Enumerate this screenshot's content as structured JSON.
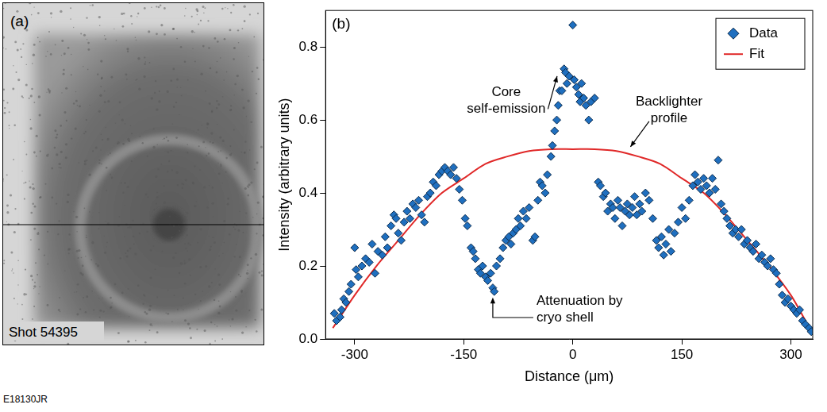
{
  "figure_id": "E18130JR",
  "image_panel": {
    "label": "(a)",
    "caption": "Shot 54395"
  },
  "chart_data": {
    "type": "scatter",
    "panel_label": "(b)",
    "x_label": "Distance (μm)",
    "y_label": "Intensity (arbitrary units)",
    "xlim": [
      -340,
      330
    ],
    "xticks": [
      -300,
      -150,
      0,
      150,
      300
    ],
    "ylim": [
      0,
      0.9
    ],
    "yticks": [
      {
        "value": 0,
        "label": "0.0"
      },
      0.2,
      0.4,
      0.6,
      0.8
    ],
    "grid": false,
    "legend": "upper right",
    "series": [
      {
        "name": "Data",
        "type": "scatter",
        "color": "#1f6fbf",
        "marker": "diamond",
        "x": [
          -328,
          -325,
          -320,
          -318,
          -315,
          -312,
          -308,
          -305,
          -300,
          -298,
          -295,
          -290,
          -285,
          -280,
          -276,
          -272,
          -268,
          -262,
          -258,
          -255,
          -250,
          -246,
          -243,
          -240,
          -236,
          -232,
          -228,
          -224,
          -220,
          -216,
          -212,
          -208,
          -204,
          -200,
          -196,
          -192,
          -188,
          -184,
          -180,
          -176,
          -172,
          -168,
          -164,
          -160,
          -156,
          -152,
          -148,
          -145,
          -140,
          -137,
          -134,
          -130,
          -127,
          -124,
          -120,
          -117,
          -113,
          -110,
          -108,
          -105,
          -100,
          -96,
          -92,
          -88,
          -85,
          -82,
          -78,
          -75,
          -72,
          -68,
          -64,
          -60,
          -55,
          -52,
          -48,
          -45,
          -42,
          -38,
          -35,
          -30,
          -28,
          -25,
          -22,
          -20,
          -18,
          -15,
          -12,
          -10,
          -8,
          -5,
          0,
          2,
          5,
          8,
          10,
          12,
          15,
          18,
          22,
          25,
          30,
          35,
          38,
          42,
          45,
          48,
          52,
          55,
          58,
          62,
          65,
          68,
          72,
          75,
          78,
          82,
          85,
          88,
          92,
          95,
          100,
          105,
          110,
          115,
          118,
          122,
          125,
          128,
          132,
          135,
          140,
          145,
          150,
          155,
          160,
          165,
          168,
          172,
          176,
          180,
          184,
          188,
          192,
          196,
          200,
          204,
          208,
          212,
          216,
          220,
          224,
          228,
          232,
          236,
          240,
          244,
          248,
          252,
          256,
          260,
          264,
          268,
          272,
          276,
          280,
          284,
          288,
          292,
          296,
          300,
          304,
          308,
          312,
          316,
          320,
          325,
          328
        ],
        "values": [
          0.07,
          0.05,
          0.06,
          0.08,
          0.11,
          0.1,
          0.13,
          0.15,
          0.25,
          0.19,
          0.17,
          0.2,
          0.22,
          0.21,
          0.26,
          0.18,
          0.24,
          0.23,
          0.28,
          0.25,
          0.31,
          0.34,
          0.33,
          0.29,
          0.27,
          0.32,
          0.35,
          0.33,
          0.37,
          0.36,
          0.38,
          0.34,
          0.32,
          0.39,
          0.4,
          0.43,
          0.42,
          0.45,
          0.46,
          0.47,
          0.46,
          0.45,
          0.47,
          0.44,
          0.41,
          0.38,
          0.33,
          0.31,
          0.25,
          0.24,
          0.22,
          0.19,
          0.18,
          0.2,
          0.17,
          0.16,
          0.18,
          0.14,
          0.13,
          0.2,
          0.22,
          0.25,
          0.27,
          0.28,
          0.26,
          0.29,
          0.3,
          0.33,
          0.31,
          0.35,
          0.33,
          0.36,
          0.27,
          0.28,
          0.38,
          0.43,
          0.42,
          0.4,
          0.45,
          0.5,
          0.53,
          0.57,
          0.6,
          0.64,
          0.68,
          0.68,
          0.74,
          0.73,
          0.7,
          0.72,
          0.86,
          0.71,
          0.69,
          0.67,
          0.65,
          0.7,
          0.66,
          0.64,
          0.6,
          0.65,
          0.66,
          0.43,
          0.42,
          0.39,
          0.4,
          0.35,
          0.37,
          0.36,
          0.33,
          0.38,
          0.36,
          0.31,
          0.35,
          0.37,
          0.34,
          0.36,
          0.39,
          0.34,
          0.37,
          0.35,
          0.4,
          0.38,
          0.33,
          0.27,
          0.25,
          0.28,
          0.23,
          0.26,
          0.3,
          0.24,
          0.29,
          0.32,
          0.36,
          0.33,
          0.38,
          0.42,
          0.45,
          0.43,
          0.41,
          0.44,
          0.42,
          0.4,
          0.44,
          0.41,
          0.49,
          0.37,
          0.35,
          0.33,
          0.31,
          0.29,
          0.3,
          0.28,
          0.3,
          0.26,
          0.27,
          0.25,
          0.24,
          0.26,
          0.22,
          0.23,
          0.21,
          0.2,
          0.22,
          0.19,
          0.18,
          0.15,
          0.12,
          0.1,
          0.11,
          0.09,
          0.08,
          0.07,
          0.08,
          0.05,
          0.04,
          0.03,
          0.02
        ]
      },
      {
        "name": "Fit",
        "type": "line",
        "color": "#e02828",
        "line_style": "solid",
        "x": [
          -330,
          -300,
          -270,
          -240,
          -210,
          -180,
          -150,
          -120,
          -90,
          -60,
          -30,
          0,
          30,
          60,
          90,
          120,
          150,
          180,
          210,
          240,
          270,
          300,
          320
        ],
        "values": [
          0.03,
          0.12,
          0.2,
          0.27,
          0.34,
          0.4,
          0.44,
          0.48,
          0.5,
          0.515,
          0.52,
          0.52,
          0.52,
          0.515,
          0.5,
          0.48,
          0.44,
          0.4,
          0.34,
          0.27,
          0.2,
          0.12,
          0.05
        ]
      }
    ],
    "annotations": [
      {
        "text": [
          "Core",
          "self-emission"
        ],
        "x": -15,
        "y": 0.72
      },
      {
        "text": [
          "Backlighter",
          "profile"
        ],
        "x": 75,
        "y": 0.52
      },
      {
        "text": [
          "Attenuation by",
          "cryo shell"
        ],
        "x": -110,
        "y": 0.12
      }
    ]
  }
}
